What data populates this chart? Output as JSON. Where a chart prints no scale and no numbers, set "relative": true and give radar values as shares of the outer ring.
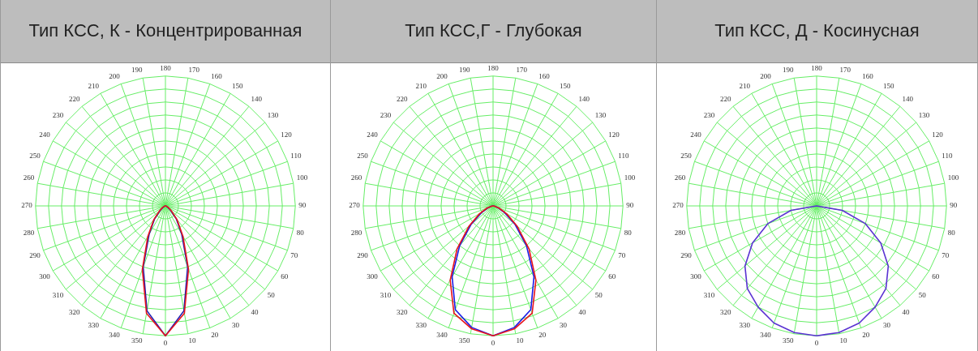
{
  "chart_data": [
    {
      "type": "radar",
      "title": "Тип КСС, К - Концентрированная",
      "categories": [
        "180",
        "170",
        "160",
        "150",
        "140",
        "130",
        "120",
        "110",
        "100",
        "90",
        "80",
        "70",
        "60",
        "50",
        "40",
        "30",
        "20",
        "10",
        "0",
        "350",
        "340",
        "330",
        "320",
        "310",
        "300",
        "290",
        "280",
        "270",
        "260",
        "250",
        "240",
        "230",
        "220",
        "210",
        "200",
        "190"
      ],
      "relative": true,
      "grid": true,
      "marker": "none",
      "line_style": "solid",
      "series": [
        {
          "color": "#e8141c",
          "values": [
            0,
            0,
            0,
            0,
            0,
            0,
            0,
            0,
            0,
            0,
            0,
            0.01,
            0.03,
            0.06,
            0.14,
            0.27,
            0.52,
            0.84,
            1,
            0.84,
            0.52,
            0.27,
            0.14,
            0.06,
            0.03,
            0.01,
            0,
            0,
            0,
            0,
            0,
            0,
            0,
            0,
            0,
            0
          ]
        },
        {
          "color": "#1c1cb4",
          "values": [
            0,
            0,
            0,
            0,
            0,
            0,
            0,
            0,
            0,
            0,
            0,
            0.01,
            0.02,
            0.05,
            0.13,
            0.25,
            0.5,
            0.82,
            1,
            0.82,
            0.5,
            0.25,
            0.13,
            0.05,
            0.02,
            0.01,
            0,
            0,
            0,
            0,
            0,
            0,
            0,
            0,
            0,
            0
          ]
        }
      ]
    },
    {
      "type": "radar",
      "title": "Тип КСС,Г - Глубокая",
      "categories": [
        "180",
        "170",
        "160",
        "150",
        "140",
        "130",
        "120",
        "110",
        "100",
        "90",
        "80",
        "70",
        "60",
        "50",
        "40",
        "30",
        "20",
        "10",
        "0",
        "350",
        "340",
        "330",
        "320",
        "310",
        "300",
        "290",
        "280",
        "270",
        "260",
        "250",
        "240",
        "230",
        "220",
        "210",
        "200",
        "190"
      ],
      "relative": true,
      "grid": true,
      "marker": "none",
      "line_style": "solid",
      "series": [
        {
          "color": "#e8141c",
          "values": [
            0,
            0,
            0,
            0,
            0,
            0,
            0,
            0,
            0,
            0,
            0.01,
            0.05,
            0.12,
            0.24,
            0.43,
            0.66,
            0.88,
            0.96,
            1,
            0.96,
            0.88,
            0.66,
            0.43,
            0.24,
            0.12,
            0.05,
            0.01,
            0,
            0,
            0,
            0,
            0,
            0,
            0,
            0,
            0
          ]
        },
        {
          "color": "#1a1ae6",
          "values": [
            0,
            0,
            0,
            0,
            0,
            0,
            0,
            0,
            0,
            0,
            0.01,
            0.04,
            0.1,
            0.22,
            0.4,
            0.63,
            0.85,
            0.95,
            1,
            0.95,
            0.85,
            0.63,
            0.4,
            0.22,
            0.1,
            0.04,
            0.01,
            0,
            0,
            0,
            0,
            0,
            0,
            0,
            0,
            0
          ]
        }
      ]
    },
    {
      "type": "radar",
      "title": "Тип КСС, Д - Косинусная",
      "categories": [
        "180",
        "170",
        "160",
        "150",
        "140",
        "130",
        "120",
        "110",
        "100",
        "90",
        "80",
        "70",
        "60",
        "50",
        "40",
        "30",
        "20",
        "10",
        "0",
        "350",
        "340",
        "330",
        "320",
        "310",
        "300",
        "290",
        "280",
        "270",
        "260",
        "250",
        "240",
        "230",
        "220",
        "210",
        "200",
        "190"
      ],
      "relative": true,
      "grid": true,
      "marker": "none",
      "line_style": "solid",
      "series": [
        {
          "color": "#5a32d2",
          "values": [
            0,
            0,
            0,
            0,
            0,
            0,
            0,
            0,
            0,
            0,
            0.2,
            0.4,
            0.57,
            0.72,
            0.83,
            0.9,
            0.96,
            0.99,
            1,
            0.99,
            0.96,
            0.9,
            0.83,
            0.72,
            0.57,
            0.4,
            0.2,
            0,
            0,
            0,
            0,
            0,
            0,
            0,
            0,
            0
          ]
        }
      ]
    }
  ]
}
